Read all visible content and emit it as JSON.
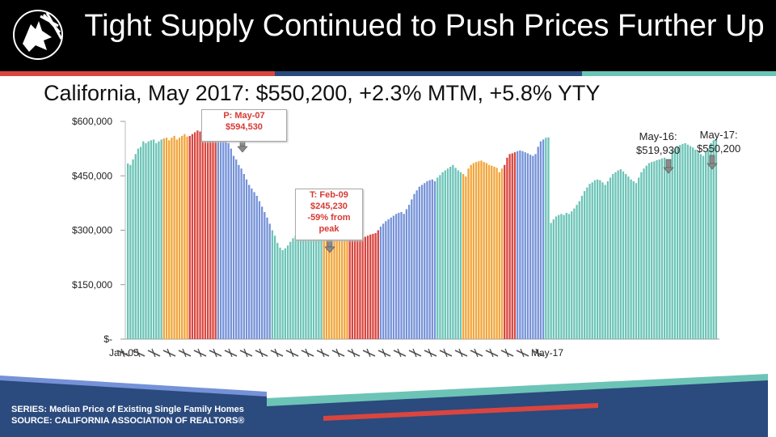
{
  "header": {
    "title": "Tight Supply Continued to Push Prices Further Up"
  },
  "subtitle": "California, May 2017: $550,200, +2.3% MTM, +5.8% YTY",
  "annotations": {
    "peak": {
      "line1": "P: May-07",
      "line2": "$594,530"
    },
    "trough": {
      "line1": "T: Feb-09",
      "line2": "$245,230",
      "line3": "-59% from",
      "line4": "peak"
    },
    "may16": {
      "line1": "May-16:",
      "line2": "$519,930"
    },
    "may17": {
      "line1": "May-17:",
      "line2": "$550,200"
    }
  },
  "footer": {
    "series": "SERIES: Median Price of Existing Single Family Homes",
    "source": "SOURCE:  CALIFORNIA ASSOCIATION OF REALTORS®"
  },
  "colors": {
    "teal": "#6cc4b7",
    "orange": "#f2a53a",
    "red": "#d9453f",
    "blue": "#7592d8",
    "navy": "#2b4a7d"
  },
  "chart_data": {
    "type": "bar",
    "title": "",
    "ylabel": "",
    "ylim": [
      0,
      600000
    ],
    "yticks": [
      {
        "value": 0,
        "label": "$-"
      },
      {
        "value": 150000,
        "label": "$150,000"
      },
      {
        "value": 300000,
        "label": "$300,000"
      },
      {
        "value": 450000,
        "label": "$450,000"
      },
      {
        "value": 600000,
        "label": "$600,000"
      }
    ],
    "x_start": "Jan-05",
    "x_end": "May-17",
    "xtick_label_sample": "Jan-05 ... May-17",
    "color_scheme": "teal, orange, red and blue bands",
    "values": [
      484000,
      480000,
      495000,
      510000,
      525000,
      530000,
      545000,
      540000,
      545000,
      548000,
      550000,
      540000,
      545000,
      550000,
      553000,
      555000,
      548000,
      555000,
      560000,
      550000,
      555000,
      560000,
      565000,
      558000,
      560000,
      565000,
      570000,
      575000,
      572000,
      580000,
      578000,
      575000,
      580000,
      585000,
      590000,
      594530,
      588000,
      575000,
      555000,
      540000,
      525000,
      505000,
      495000,
      480000,
      470000,
      455000,
      440000,
      425000,
      415000,
      405000,
      395000,
      380000,
      365000,
      350000,
      335000,
      318000,
      300000,
      285000,
      265000,
      252000,
      245230,
      250000,
      258000,
      268000,
      278000,
      285000,
      290000,
      295000,
      296000,
      300000,
      298000,
      300000,
      305000,
      308000,
      310000,
      305000,
      315000,
      320000,
      318000,
      322000,
      325000,
      320000,
      310000,
      305000,
      300000,
      298000,
      295000,
      292000,
      290000,
      285000,
      283000,
      280000,
      282000,
      285000,
      288000,
      290000,
      292000,
      300000,
      310000,
      318000,
      325000,
      330000,
      335000,
      340000,
      345000,
      348000,
      350000,
      345000,
      358000,
      370000,
      385000,
      400000,
      410000,
      420000,
      425000,
      430000,
      435000,
      438000,
      440000,
      435000,
      445000,
      452000,
      460000,
      465000,
      470000,
      475000,
      480000,
      472000,
      465000,
      460000,
      455000,
      448000,
      470000,
      480000,
      485000,
      488000,
      490000,
      492000,
      488000,
      485000,
      480000,
      478000,
      475000,
      472000,
      460000,
      470000,
      480000,
      500000,
      510000,
      512000,
      515000,
      518000,
      520000,
      518000,
      515000,
      512000,
      508000,
      505000,
      510000,
      530000,
      545000,
      550000,
      555000,
      556000,
      320000,
      330000,
      338000,
      342000,
      345000,
      342000,
      348000,
      345000,
      352000,
      360000,
      370000,
      380000,
      395000,
      408000,
      418000,
      428000,
      432000,
      438000,
      440000,
      438000,
      432000,
      425000,
      435000,
      445000,
      455000,
      460000,
      465000,
      468000,
      462000,
      455000,
      448000,
      440000,
      435000,
      430000,
      445000,
      460000,
      470000,
      478000,
      485000,
      488000,
      490000,
      493000,
      495000,
      498000,
      500000,
      492000,
      485000,
      519930,
      525000,
      530000,
      535000,
      538000,
      540000,
      536000,
      532000,
      528000,
      522000,
      515000,
      510000,
      505000,
      515000,
      525000,
      540000,
      548000,
      550200
    ]
  }
}
